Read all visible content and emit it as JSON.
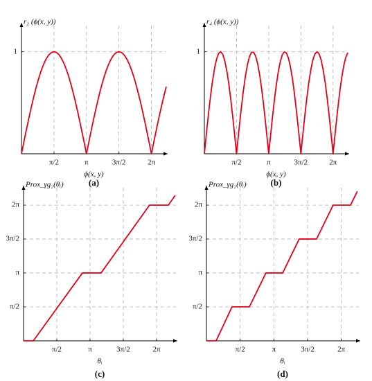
{
  "chart_data": [
    {
      "type": "line",
      "label": "(a)",
      "y_label": "r₂ (ϕ(x, y))",
      "x_label": "ϕ(x, y)",
      "x": [
        0,
        0.1,
        0.2,
        0.3,
        0.4,
        0.5,
        0.6,
        0.7,
        0.8,
        0.9,
        1.0,
        1.1,
        1.2,
        1.3,
        1.4,
        1.5,
        1.5708,
        1.6,
        1.7,
        1.8,
        1.9,
        2.0,
        2.1,
        2.2,
        2.3,
        2.4,
        2.5,
        2.6,
        2.7,
        2.8,
        2.9,
        3.0,
        3.1,
        3.1416,
        3.2,
        3.3,
        3.4,
        3.5,
        3.6,
        3.7,
        3.8,
        3.9,
        4.0,
        4.1,
        4.2,
        4.3,
        4.4,
        4.5,
        4.6,
        4.7,
        4.7124,
        4.8,
        4.9,
        5.0,
        5.1,
        5.2,
        5.3,
        5.4,
        5.5,
        5.6,
        5.7,
        5.8,
        5.9,
        6.0,
        6.1,
        6.2,
        6.2832,
        6.3,
        6.4,
        6.5,
        6.6,
        6.7,
        6.8,
        6.9,
        7.0
      ],
      "series": [
        {
          "color": "#e3001b",
          "values": [
            0,
            0.1,
            0.199,
            0.296,
            0.389,
            0.479,
            0.565,
            0.644,
            0.717,
            0.783,
            0.841,
            0.891,
            0.932,
            0.964,
            0.985,
            0.997,
            1,
            1.0,
            0.992,
            0.974,
            0.946,
            0.909,
            0.863,
            0.808,
            0.746,
            0.675,
            0.598,
            0.516,
            0.427,
            0.335,
            0.239,
            0.141,
            0.042,
            0,
            0.058,
            0.158,
            0.256,
            0.351,
            0.443,
            0.53,
            0.612,
            0.688,
            0.757,
            0.818,
            0.872,
            0.916,
            0.952,
            0.978,
            0.994,
            1.0,
            1,
            0.996,
            0.983,
            0.959,
            0.926,
            0.884,
            0.832,
            0.773,
            0.706,
            0.631,
            0.551,
            0.465,
            0.374,
            0.279,
            0.182,
            0.083,
            0,
            0.017,
            0.117,
            0.215,
            0.312,
            0.405,
            0.494,
            0.578,
            0.657
          ]
        }
      ],
      "xlim": [
        0,
        7.0
      ],
      "ylim": [
        0,
        1.27
      ],
      "xticks": [
        {
          "value": 1.5708,
          "label": "π/2"
        },
        {
          "value": 3.1416,
          "label": "π"
        },
        {
          "value": 4.7124,
          "label": "3π/2"
        },
        {
          "value": 6.2832,
          "label": "2π"
        }
      ],
      "yticks": [
        1
      ],
      "grid": true
    },
    {
      "type": "line",
      "label": "(b)",
      "y_label": "r₄ (ϕ(x, y))",
      "x_label": "ϕ(x, y)",
      "x": [
        0,
        0.1,
        0.2,
        0.3,
        0.4,
        0.5,
        0.6,
        0.7,
        0.8,
        0.9,
        1.0,
        1.1,
        1.2,
        1.3,
        1.4,
        1.5,
        1.5708,
        1.6,
        1.7,
        1.8,
        1.9,
        2.0,
        2.1,
        2.2,
        2.3,
        2.4,
        2.5,
        2.6,
        2.7,
        2.8,
        2.9,
        3.0,
        3.1,
        3.1416,
        3.2,
        3.3,
        3.4,
        3.5,
        3.6,
        3.7,
        3.8,
        3.9,
        4.0,
        4.1,
        4.2,
        4.3,
        4.4,
        4.5,
        4.6,
        4.7,
        4.7124,
        4.8,
        4.9,
        5.0,
        5.1,
        5.2,
        5.3,
        5.4,
        5.5,
        5.6,
        5.7,
        5.8,
        5.9,
        6.0,
        6.1,
        6.2,
        6.2832,
        6.3,
        6.4,
        6.5,
        6.6,
        6.7,
        6.8,
        6.9,
        7.0
      ],
      "series": [
        {
          "color": "#e3001b",
          "values": [
            0,
            0.199,
            0.389,
            0.565,
            0.717,
            0.841,
            0.932,
            0.985,
            1.0,
            0.974,
            0.909,
            0.808,
            0.675,
            0.516,
            0.335,
            0.141,
            0,
            0.058,
            0.256,
            0.443,
            0.612,
            0.757,
            0.872,
            0.952,
            0.994,
            0.996,
            0.959,
            0.884,
            0.773,
            0.631,
            0.465,
            0.279,
            0.083,
            0,
            0.117,
            0.312,
            0.494,
            0.657,
            0.794,
            0.899,
            0.968,
            0.999,
            0.989,
            0.941,
            0.855,
            0.734,
            0.585,
            0.412,
            0.223,
            0.025,
            0,
            0.174,
            0.367,
            0.544,
            0.7,
            0.828,
            0.923,
            0.981,
            1.0,
            0.979,
            0.919,
            0.823,
            0.694,
            0.537,
            0.358,
            0.166,
            0,
            0.034,
            0.232,
            0.42,
            0.592,
            0.74,
            0.86,
            0.944,
            0.991
          ]
        }
      ],
      "xlim": [
        0,
        7.0
      ],
      "ylim": [
        0,
        1.27
      ],
      "xticks": [
        {
          "value": 1.5708,
          "label": "π/2"
        },
        {
          "value": 3.1416,
          "label": "π"
        },
        {
          "value": 4.7124,
          "label": "3π/2"
        },
        {
          "value": 6.2832,
          "label": "2π"
        }
      ],
      "yticks": [
        1
      ],
      "grid": true
    },
    {
      "type": "line",
      "label": "(c)",
      "y_label": "Prox_γg₂(θᵢ)",
      "x_label": "θᵢ",
      "x": [
        0,
        0.46,
        2.78,
        3.66,
        5.95,
        6.84,
        7.16
      ],
      "series": [
        {
          "color": "#e3001b",
          "values": [
            0,
            0,
            3.1416,
            3.1416,
            6.2832,
            6.2832,
            6.73
          ]
        }
      ],
      "xlim": [
        0,
        7.2
      ],
      "ylim": [
        0,
        7.12
      ],
      "xticks": [
        {
          "value": 1.5708,
          "label": "π/2"
        },
        {
          "value": 3.1416,
          "label": "π"
        },
        {
          "value": 4.7124,
          "label": "3π/2"
        },
        {
          "value": 6.2832,
          "label": "2π"
        }
      ],
      "yticks": [
        {
          "value": 1.5708,
          "label": "π/2"
        },
        {
          "value": 3.1416,
          "label": "π"
        },
        {
          "value": 4.7124,
          "label": "3π/2"
        },
        {
          "value": 6.2832,
          "label": "2π"
        }
      ],
      "grid": true
    },
    {
      "type": "line",
      "label": "(d)",
      "y_label": "Prox_γg₂(θᵢ)",
      "x_label": "θᵢ",
      "x": [
        0,
        0.45,
        1.19,
        2.0,
        2.77,
        3.55,
        4.32,
        5.13,
        5.9,
        6.71,
        7.03
      ],
      "series": [
        {
          "color": "#e3001b",
          "values": [
            0,
            0,
            1.5708,
            1.5708,
            3.1416,
            3.1416,
            4.7124,
            4.7124,
            6.2832,
            6.2832,
            6.92
          ]
        }
      ],
      "xlim": [
        0,
        7.1
      ],
      "ylim": [
        0,
        7.12
      ],
      "xticks": [
        {
          "value": 1.5708,
          "label": "π/2"
        },
        {
          "value": 3.1416,
          "label": "π"
        },
        {
          "value": 4.7124,
          "label": "3π/2"
        },
        {
          "value": 6.2832,
          "label": "2π"
        }
      ],
      "yticks": [
        {
          "value": 1.5708,
          "label": "π/2"
        },
        {
          "value": 3.1416,
          "label": "π"
        },
        {
          "value": 4.7124,
          "label": "3π/2"
        },
        {
          "value": 6.2832,
          "label": "2π"
        }
      ],
      "grid": true
    }
  ]
}
